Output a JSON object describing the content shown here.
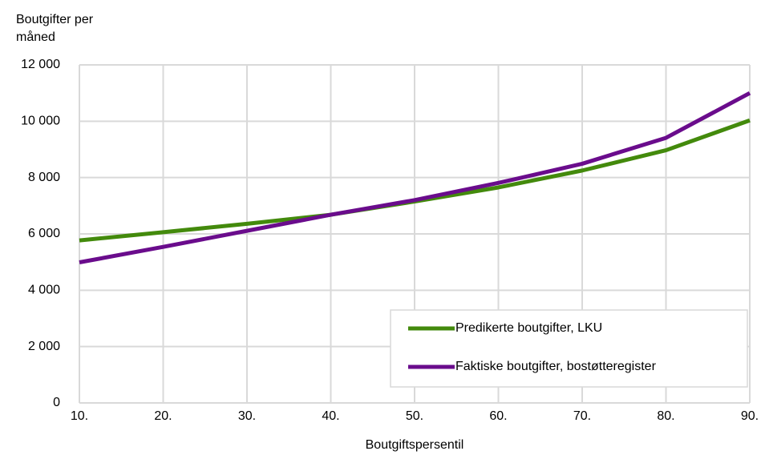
{
  "chart_data": {
    "type": "line",
    "y_label": "Boutgifter per måned",
    "x_label": "Boutgiftspersentil",
    "categories": [
      "10.",
      "20.",
      "30.",
      "40.",
      "50.",
      "60.",
      "70.",
      "80.",
      "90."
    ],
    "series": [
      {
        "name": "Predikerte boutgifter, LKU",
        "color": "#438a0c",
        "values": [
          5770,
          6060,
          6360,
          6680,
          7150,
          7650,
          8250,
          8970,
          10030
        ]
      },
      {
        "name": "Faktiske boutgifter, bostøtteregister",
        "color": "#6a0c8c",
        "values": [
          4990,
          5540,
          6110,
          6680,
          7200,
          7810,
          8490,
          9410,
          11000
        ]
      }
    ],
    "ylim": [
      0,
      12000
    ],
    "yticks": [
      0,
      {
        "value": 2000,
        "label": "2 000"
      },
      {
        "value": 4000,
        "label": "4 000"
      },
      {
        "value": 6000,
        "label": "6 000"
      },
      {
        "value": 8000,
        "label": "8 000"
      },
      {
        "value": 10000,
        "label": "10 000"
      },
      {
        "value": 12000,
        "label": "12 000"
      }
    ],
    "grid": true,
    "legend": "lower-right"
  }
}
